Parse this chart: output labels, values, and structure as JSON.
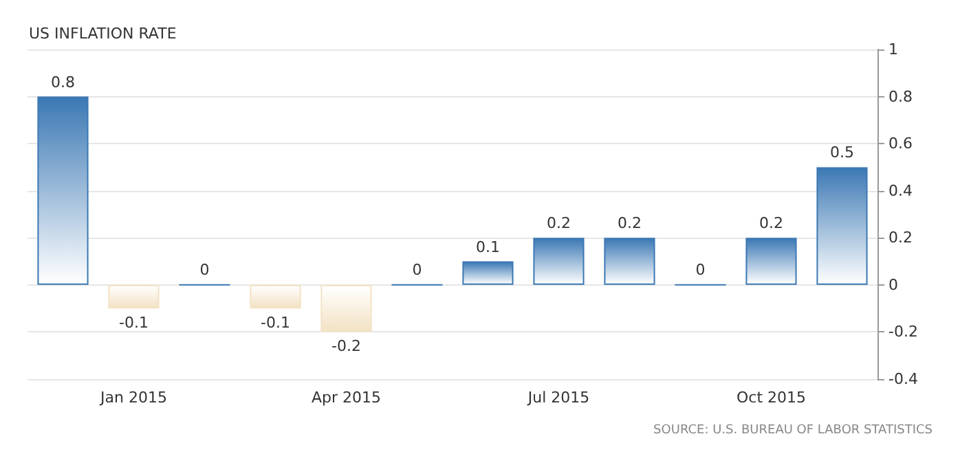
{
  "chart_data": {
    "type": "bar",
    "title": "US INFLATION RATE",
    "categories": [
      null,
      "Jan 2015",
      null,
      null,
      "Apr 2015",
      null,
      null,
      "Jul 2015",
      null,
      null,
      "Oct 2015",
      null
    ],
    "values": [
      0.8,
      -0.1,
      0,
      -0.1,
      -0.2,
      0,
      0.1,
      0.2,
      0.2,
      0,
      0.2,
      0.5
    ],
    "colors": [
      "#3b78b4",
      "#f3e2c4",
      "#3b78b4",
      "#f3e2c4",
      "#f3e2c4",
      "#3b78b4",
      "#3b78b4",
      "#3b78b4",
      "#3b78b4",
      "#3b78b4",
      "#3b78b4",
      "#3b78b4"
    ],
    "ylim": [
      -0.4,
      1
    ],
    "yticks": [
      -0.4,
      -0.2,
      0,
      0.2,
      0.4,
      0.6,
      0.8,
      1
    ],
    "grid": "y",
    "data_labels": true,
    "annotations": [
      "SOURCE: U.S. BUREAU OF LABOR STATISTICS"
    ]
  }
}
